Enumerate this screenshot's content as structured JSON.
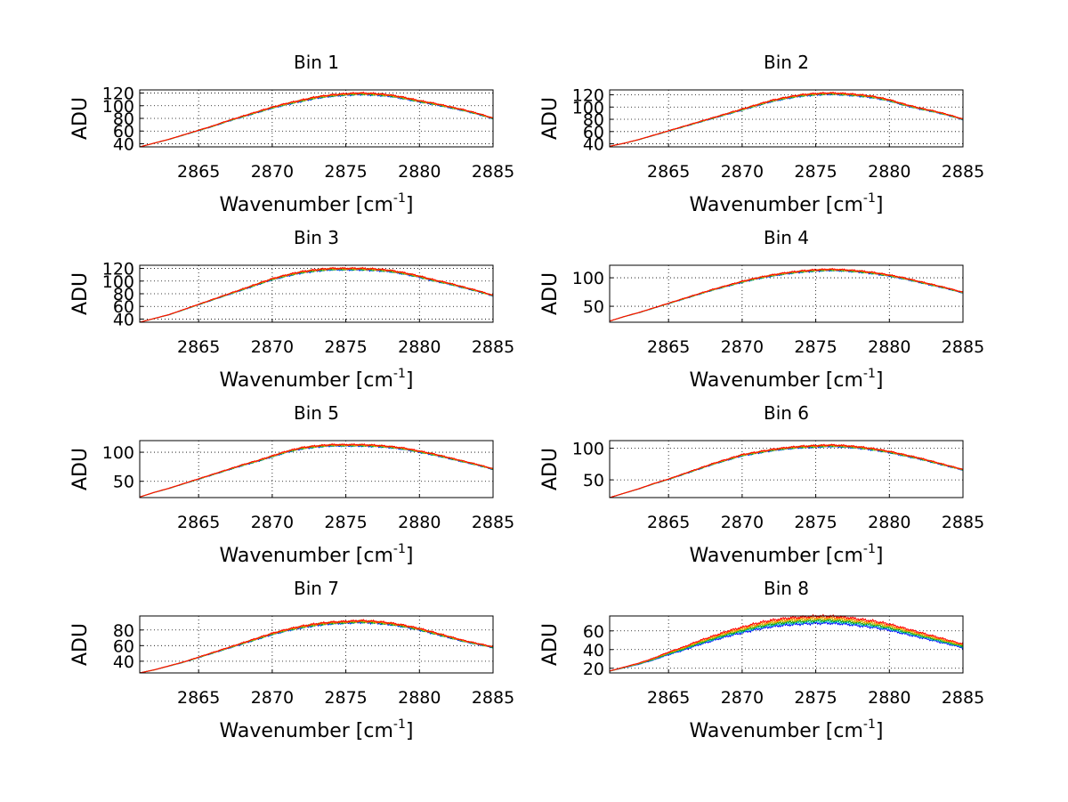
{
  "figure": {
    "background": "#ffffff",
    "series_colors": [
      "#0000ff",
      "#00bfbf",
      "#009900",
      "#bfbf00",
      "#ff7f00",
      "#ff0000"
    ]
  },
  "chart_data": [
    {
      "type": "line",
      "title": "Bin 1",
      "xlabel": "Wavenumber [cm",
      "xlabel_sup": "-1",
      "xlabel_close": "]",
      "ylabel": "ADU",
      "xlim": [
        2861,
        2885
      ],
      "ylim": [
        35,
        125
      ],
      "xticks": [
        2865,
        2870,
        2875,
        2880,
        2885
      ],
      "yticks": [
        40,
        60,
        80,
        100,
        120
      ],
      "grid": true,
      "x": [
        2861,
        2862,
        2863,
        2864,
        2865,
        2866,
        2867,
        2868,
        2869,
        2870,
        2871,
        2872,
        2873,
        2874,
        2875,
        2876,
        2877,
        2878,
        2879,
        2880,
        2881,
        2882,
        2883,
        2884,
        2885
      ],
      "y": [
        35,
        41,
        47,
        54,
        61,
        68,
        76,
        83,
        90,
        97,
        103,
        108,
        113,
        116,
        118,
        119,
        118,
        116,
        112,
        107,
        103,
        98,
        93,
        87,
        80
      ]
    },
    {
      "type": "line",
      "title": "Bin 2",
      "xlabel": "Wavenumber [cm",
      "xlabel_sup": "-1",
      "xlabel_close": "]",
      "ylabel": "ADU",
      "xlim": [
        2861,
        2885
      ],
      "ylim": [
        35,
        128
      ],
      "xticks": [
        2865,
        2870,
        2875,
        2880,
        2885
      ],
      "yticks": [
        40,
        60,
        80,
        100,
        120
      ],
      "grid": true,
      "x": [
        2861,
        2862,
        2863,
        2864,
        2865,
        2866,
        2867,
        2868,
        2869,
        2870,
        2871,
        2872,
        2873,
        2874,
        2875,
        2876,
        2877,
        2878,
        2879,
        2880,
        2881,
        2882,
        2883,
        2884,
        2885
      ],
      "y": [
        36,
        41,
        47,
        54,
        61,
        68,
        75,
        82,
        89,
        96,
        103,
        110,
        115,
        119,
        121,
        122,
        121,
        119,
        116,
        111,
        104,
        98,
        93,
        87,
        80
      ]
    },
    {
      "type": "line",
      "title": "Bin 3",
      "xlabel": "Wavenumber [cm",
      "xlabel_sup": "-1",
      "xlabel_close": "]",
      "ylabel": "ADU",
      "xlim": [
        2861,
        2885
      ],
      "ylim": [
        35,
        125
      ],
      "xticks": [
        2865,
        2870,
        2875,
        2880,
        2885
      ],
      "yticks": [
        40,
        60,
        80,
        100,
        120
      ],
      "grid": true,
      "x": [
        2861,
        2862,
        2863,
        2864,
        2865,
        2866,
        2867,
        2868,
        2869,
        2870,
        2871,
        2872,
        2873,
        2874,
        2875,
        2876,
        2877,
        2878,
        2879,
        2880,
        2881,
        2882,
        2883,
        2884,
        2885
      ],
      "y": [
        35,
        41,
        47,
        55,
        63,
        71,
        79,
        87,
        95,
        103,
        109,
        114,
        117,
        119,
        119,
        119,
        118,
        116,
        112,
        107,
        101,
        96,
        90,
        84,
        77
      ]
    },
    {
      "type": "line",
      "title": "Bin 4",
      "xlabel": "Wavenumber [cm",
      "xlabel_sup": "-1",
      "xlabel_close": "]",
      "ylabel": "ADU",
      "xlim": [
        2861,
        2885
      ],
      "ylim": [
        22,
        122
      ],
      "xticks": [
        2865,
        2870,
        2875,
        2880,
        2885
      ],
      "yticks": [
        50,
        100
      ],
      "grid": true,
      "x": [
        2861,
        2862,
        2863,
        2864,
        2865,
        2866,
        2867,
        2868,
        2869,
        2870,
        2871,
        2872,
        2873,
        2874,
        2875,
        2876,
        2877,
        2878,
        2879,
        2880,
        2881,
        2882,
        2883,
        2884,
        2885
      ],
      "y": [
        24,
        32,
        39,
        47,
        55,
        63,
        71,
        79,
        86,
        93,
        99,
        104,
        108,
        111,
        113,
        114,
        113,
        111,
        108,
        104,
        99,
        93,
        87,
        81,
        74
      ]
    },
    {
      "type": "line",
      "title": "Bin 5",
      "xlabel": "Wavenumber [cm",
      "xlabel_sup": "-1",
      "xlabel_close": "]",
      "ylabel": "ADU",
      "xlim": [
        2861,
        2885
      ],
      "ylim": [
        22,
        120
      ],
      "xticks": [
        2865,
        2870,
        2875,
        2880,
        2885
      ],
      "yticks": [
        50,
        100
      ],
      "grid": true,
      "x": [
        2861,
        2862,
        2863,
        2864,
        2865,
        2866,
        2867,
        2868,
        2869,
        2870,
        2871,
        2872,
        2873,
        2874,
        2875,
        2876,
        2877,
        2878,
        2879,
        2880,
        2881,
        2882,
        2883,
        2884,
        2885
      ],
      "y": [
        23,
        31,
        38,
        46,
        54,
        62,
        70,
        78,
        85,
        93,
        101,
        107,
        110,
        112,
        112,
        112,
        111,
        109,
        106,
        101,
        96,
        90,
        84,
        78,
        71
      ]
    },
    {
      "type": "line",
      "title": "Bin 6",
      "xlabel": "Wavenumber [cm",
      "xlabel_sup": "-1",
      "xlabel_close": "]",
      "ylabel": "ADU",
      "xlim": [
        2861,
        2885
      ],
      "ylim": [
        22,
        112
      ],
      "xticks": [
        2865,
        2870,
        2875,
        2880,
        2885
      ],
      "yticks": [
        50,
        100
      ],
      "grid": true,
      "x": [
        2861,
        2862,
        2863,
        2864,
        2865,
        2866,
        2867,
        2868,
        2869,
        2870,
        2871,
        2872,
        2873,
        2874,
        2875,
        2876,
        2877,
        2878,
        2879,
        2880,
        2881,
        2882,
        2883,
        2884,
        2885
      ],
      "y": [
        22,
        29,
        36,
        44,
        51,
        59,
        67,
        75,
        82,
        89,
        93,
        97,
        100,
        102,
        103,
        104,
        103,
        101,
        98,
        94,
        89,
        84,
        78,
        72,
        66
      ]
    },
    {
      "type": "line",
      "title": "Bin 7",
      "xlabel": "Wavenumber [cm",
      "xlabel_sup": "-1",
      "xlabel_close": "]",
      "ylabel": "ADU",
      "xlim": [
        2861,
        2885
      ],
      "ylim": [
        25,
        98
      ],
      "xticks": [
        2865,
        2870,
        2875,
        2880,
        2885
      ],
      "yticks": [
        40,
        60,
        80
      ],
      "grid": true,
      "x": [
        2861,
        2862,
        2863,
        2864,
        2865,
        2866,
        2867,
        2868,
        2869,
        2870,
        2871,
        2872,
        2873,
        2874,
        2875,
        2876,
        2877,
        2878,
        2879,
        2880,
        2881,
        2882,
        2883,
        2884,
        2885
      ],
      "y": [
        25,
        29,
        34,
        39,
        45,
        51,
        57,
        63,
        69,
        75,
        80,
        84,
        87,
        89,
        90,
        91,
        90,
        88,
        85,
        81,
        76,
        71,
        66,
        62,
        58
      ]
    },
    {
      "type": "line",
      "title": "Bin 8",
      "xlabel": "Wavenumber [cm",
      "xlabel_sup": "-1",
      "xlabel_close": "]",
      "ylabel": "ADU",
      "xlim": [
        2861,
        2885
      ],
      "ylim": [
        15,
        76
      ],
      "xticks": [
        2865,
        2870,
        2875,
        2880,
        2885
      ],
      "yticks": [
        20,
        40,
        60
      ],
      "grid": true,
      "x": [
        2861,
        2862,
        2863,
        2864,
        2865,
        2866,
        2867,
        2868,
        2869,
        2870,
        2871,
        2872,
        2873,
        2874,
        2875,
        2876,
        2877,
        2878,
        2879,
        2880,
        2881,
        2882,
        2883,
        2884,
        2885
      ],
      "y": [
        17,
        21,
        25,
        30,
        36,
        41,
        47,
        52,
        57,
        61,
        65,
        68,
        70,
        71,
        72,
        72,
        71,
        69,
        67,
        64,
        60,
        56,
        52,
        48,
        44
      ],
      "spread": 4
    }
  ]
}
